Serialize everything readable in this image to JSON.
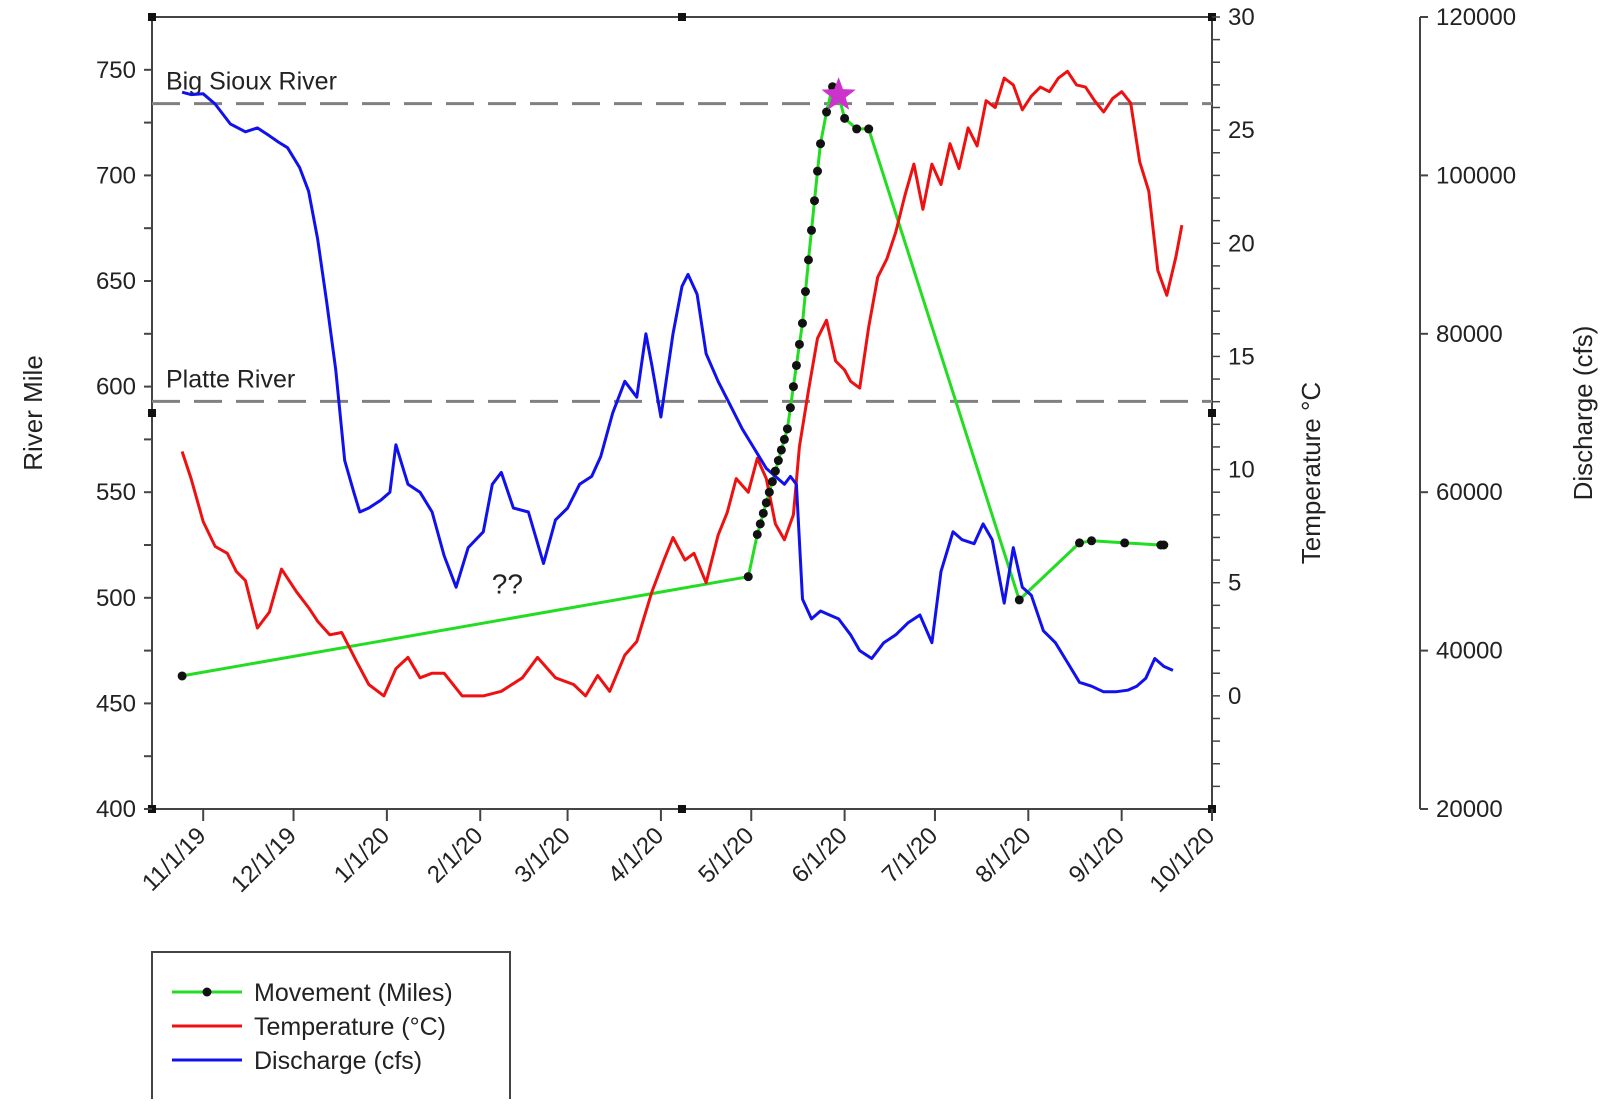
{
  "chart_data": {
    "type": "line",
    "title": "",
    "x_axis": {
      "type": "date",
      "ticks": [
        "11/1/19",
        "12/1/19",
        "1/1/20",
        "2/1/20",
        "3/1/20",
        "4/1/20",
        "5/1/20",
        "6/1/20",
        "7/1/20",
        "8/1/20",
        "9/1/20",
        "10/1/20"
      ],
      "range": [
        "2019-10-15",
        "2020-10-01"
      ]
    },
    "y_axes": [
      {
        "id": "river_mile",
        "label": "River Mile",
        "side": "left",
        "ylim": [
          400,
          775
        ],
        "ticks": [
          400,
          450,
          500,
          550,
          600,
          650,
          700,
          750
        ]
      },
      {
        "id": "temperature",
        "label": "Temperature °C",
        "side": "right",
        "ylim": [
          -5,
          30
        ],
        "ticks": [
          0,
          5,
          10,
          15,
          20,
          25,
          30
        ]
      },
      {
        "id": "discharge",
        "label": "Discharge (cfs)",
        "side": "right-outer",
        "ylim": [
          20000,
          120000
        ],
        "ticks": [
          20000,
          40000,
          60000,
          80000,
          100000,
          120000
        ]
      }
    ],
    "reference_lines": [
      {
        "label": "Big Sioux River",
        "y": 734,
        "style": "dashed",
        "color": "#808080"
      },
      {
        "label": "Platte River",
        "y": 593,
        "style": "dashed",
        "color": "#808080"
      }
    ],
    "annotations": [
      {
        "text": "??",
        "x": "2020-02-10",
        "y": 502
      },
      {
        "symbol": "star",
        "x": "2020-05-30",
        "y": 738,
        "color": "#cc33cc"
      }
    ],
    "series": [
      {
        "name": "Movement (Miles)",
        "axis": "river_mile",
        "color": "#22dd22",
        "markers": true,
        "points": [
          [
            "2019-10-25",
            463
          ],
          [
            "2020-04-30",
            510
          ],
          [
            "2020-05-03",
            530
          ],
          [
            "2020-05-04",
            535
          ],
          [
            "2020-05-05",
            540
          ],
          [
            "2020-05-06",
            545
          ],
          [
            "2020-05-07",
            550
          ],
          [
            "2020-05-08",
            555
          ],
          [
            "2020-05-09",
            560
          ],
          [
            "2020-05-10",
            565
          ],
          [
            "2020-05-11",
            570
          ],
          [
            "2020-05-12",
            575
          ],
          [
            "2020-05-13",
            580
          ],
          [
            "2020-05-14",
            590
          ],
          [
            "2020-05-15",
            600
          ],
          [
            "2020-05-16",
            610
          ],
          [
            "2020-05-17",
            620
          ],
          [
            "2020-05-18",
            630
          ],
          [
            "2020-05-19",
            645
          ],
          [
            "2020-05-20",
            660
          ],
          [
            "2020-05-21",
            674
          ],
          [
            "2020-05-22",
            688
          ],
          [
            "2020-05-23",
            702
          ],
          [
            "2020-05-24",
            715
          ],
          [
            "2020-05-26",
            730
          ],
          [
            "2020-05-28",
            742
          ],
          [
            "2020-05-30",
            738
          ],
          [
            "2020-06-01",
            727
          ],
          [
            "2020-06-05",
            722
          ],
          [
            "2020-06-09",
            722
          ],
          [
            "2020-07-29",
            499
          ],
          [
            "2020-08-18",
            526
          ],
          [
            "2020-08-22",
            527
          ],
          [
            "2020-09-02",
            526
          ],
          [
            "2020-09-14",
            525
          ],
          [
            "2020-09-15",
            525
          ]
        ]
      },
      {
        "name": "Temperature (°C)",
        "axis": "temperature",
        "color": "#ee1111",
        "markers": false,
        "points": [
          [
            "2019-10-25",
            10.8
          ],
          [
            "2019-10-28",
            9.6
          ],
          [
            "2019-11-01",
            7.7
          ],
          [
            "2019-11-05",
            6.6
          ],
          [
            "2019-11-09",
            6.3
          ],
          [
            "2019-11-12",
            5.5
          ],
          [
            "2019-11-15",
            5.1
          ],
          [
            "2019-11-19",
            3.0
          ],
          [
            "2019-11-23",
            3.7
          ],
          [
            "2019-11-27",
            5.6
          ],
          [
            "2019-12-02",
            4.6
          ],
          [
            "2019-12-06",
            3.9
          ],
          [
            "2019-12-09",
            3.3
          ],
          [
            "2019-12-13",
            2.7
          ],
          [
            "2019-12-17",
            2.8
          ],
          [
            "2019-12-22",
            1.5
          ],
          [
            "2019-12-26",
            0.5
          ],
          [
            "2019-12-31",
            0.0
          ],
          [
            "2020-01-04",
            1.2
          ],
          [
            "2020-01-08",
            1.7
          ],
          [
            "2020-01-12",
            0.8
          ],
          [
            "2020-01-16",
            1.0
          ],
          [
            "2020-01-20",
            1.0
          ],
          [
            "2020-01-26",
            0.0
          ],
          [
            "2020-02-02",
            0.0
          ],
          [
            "2020-02-08",
            0.2
          ],
          [
            "2020-02-15",
            0.8
          ],
          [
            "2020-02-20",
            1.7
          ],
          [
            "2020-02-26",
            0.8
          ],
          [
            "2020-03-03",
            0.5
          ],
          [
            "2020-03-07",
            0.0
          ],
          [
            "2020-03-11",
            0.9
          ],
          [
            "2020-03-15",
            0.2
          ],
          [
            "2020-03-20",
            1.8
          ],
          [
            "2020-03-24",
            2.4
          ],
          [
            "2020-03-29",
            4.6
          ],
          [
            "2020-04-02",
            6.0
          ],
          [
            "2020-04-05",
            7.0
          ],
          [
            "2020-04-09",
            6.0
          ],
          [
            "2020-04-12",
            6.3
          ],
          [
            "2020-04-16",
            5.0
          ],
          [
            "2020-04-20",
            7.1
          ],
          [
            "2020-04-23",
            8.1
          ],
          [
            "2020-04-26",
            9.6
          ],
          [
            "2020-04-30",
            9.0
          ],
          [
            "2020-05-03",
            10.5
          ],
          [
            "2020-05-06",
            9.6
          ],
          [
            "2020-05-09",
            7.6
          ],
          [
            "2020-05-12",
            6.9
          ],
          [
            "2020-05-15",
            8.0
          ],
          [
            "2020-05-17",
            11.0
          ],
          [
            "2020-05-20",
            13.5
          ],
          [
            "2020-05-23",
            15.8
          ],
          [
            "2020-05-26",
            16.6
          ],
          [
            "2020-05-29",
            14.8
          ],
          [
            "2020-06-01",
            14.4
          ],
          [
            "2020-06-03",
            13.9
          ],
          [
            "2020-06-06",
            13.6
          ],
          [
            "2020-06-09",
            16.3
          ],
          [
            "2020-06-12",
            18.5
          ],
          [
            "2020-06-15",
            19.3
          ],
          [
            "2020-06-18",
            20.5
          ],
          [
            "2020-06-21",
            22.1
          ],
          [
            "2020-06-24",
            23.5
          ],
          [
            "2020-06-27",
            21.5
          ],
          [
            "2020-06-30",
            23.5
          ],
          [
            "2020-07-03",
            22.6
          ],
          [
            "2020-07-06",
            24.4
          ],
          [
            "2020-07-09",
            23.3
          ],
          [
            "2020-07-12",
            25.1
          ],
          [
            "2020-07-15",
            24.3
          ],
          [
            "2020-07-18",
            26.3
          ],
          [
            "2020-07-21",
            26.0
          ],
          [
            "2020-07-24",
            27.3
          ],
          [
            "2020-07-27",
            27.0
          ],
          [
            "2020-07-30",
            25.9
          ],
          [
            "2020-08-02",
            26.5
          ],
          [
            "2020-08-05",
            26.9
          ],
          [
            "2020-08-08",
            26.7
          ],
          [
            "2020-08-11",
            27.3
          ],
          [
            "2020-08-14",
            27.6
          ],
          [
            "2020-08-17",
            27.0
          ],
          [
            "2020-08-20",
            26.9
          ],
          [
            "2020-08-23",
            26.3
          ],
          [
            "2020-08-26",
            25.8
          ],
          [
            "2020-08-29",
            26.4
          ],
          [
            "2020-09-01",
            26.7
          ],
          [
            "2020-09-04",
            26.2
          ],
          [
            "2020-09-07",
            23.6
          ],
          [
            "2020-09-10",
            22.3
          ],
          [
            "2020-09-13",
            18.8
          ],
          [
            "2020-09-16",
            17.7
          ],
          [
            "2020-09-19",
            19.4
          ],
          [
            "2020-09-21",
            20.8
          ]
        ]
      },
      {
        "name": "Discharge (cfs)",
        "axis": "discharge",
        "color": "#1111ee",
        "markers": false,
        "points": [
          [
            "2019-10-25",
            110500
          ],
          [
            "2019-10-28",
            110200
          ],
          [
            "2019-11-01",
            110300
          ],
          [
            "2019-11-05",
            109000
          ],
          [
            "2019-11-10",
            106500
          ],
          [
            "2019-11-15",
            105500
          ],
          [
            "2019-11-19",
            106000
          ],
          [
            "2019-11-23",
            105000
          ],
          [
            "2019-11-26",
            104200
          ],
          [
            "2019-11-29",
            103500
          ],
          [
            "2019-12-03",
            101000
          ],
          [
            "2019-12-06",
            98000
          ],
          [
            "2019-12-09",
            92000
          ],
          [
            "2019-12-12",
            84000
          ],
          [
            "2019-12-15",
            75500
          ],
          [
            "2019-12-18",
            64000
          ],
          [
            "2019-12-21",
            60000
          ],
          [
            "2019-12-23",
            57500
          ],
          [
            "2019-12-26",
            58000
          ],
          [
            "2019-12-30",
            59000
          ],
          [
            "2020-01-02",
            60000
          ],
          [
            "2020-01-04",
            66000
          ],
          [
            "2020-01-06",
            63500
          ],
          [
            "2020-01-08",
            61000
          ],
          [
            "2020-01-12",
            60000
          ],
          [
            "2020-01-16",
            57500
          ],
          [
            "2020-01-20",
            52000
          ],
          [
            "2020-01-24",
            48000
          ],
          [
            "2020-01-28",
            53000
          ],
          [
            "2020-02-02",
            55000
          ],
          [
            "2020-02-05",
            61000
          ],
          [
            "2020-02-08",
            62500
          ],
          [
            "2020-02-12",
            58000
          ],
          [
            "2020-02-17",
            57500
          ],
          [
            "2020-02-22",
            51000
          ],
          [
            "2020-02-26",
            56500
          ],
          [
            "2020-03-01",
            58000
          ],
          [
            "2020-03-05",
            61000
          ],
          [
            "2020-03-09",
            62000
          ],
          [
            "2020-03-12",
            64500
          ],
          [
            "2020-03-16",
            70000
          ],
          [
            "2020-03-20",
            74000
          ],
          [
            "2020-03-24",
            72000
          ],
          [
            "2020-03-27",
            80000
          ],
          [
            "2020-03-29",
            76000
          ],
          [
            "2020-04-01",
            69500
          ],
          [
            "2020-04-05",
            80000
          ],
          [
            "2020-04-08",
            86000
          ],
          [
            "2020-04-10",
            87500
          ],
          [
            "2020-04-13",
            85000
          ],
          [
            "2020-04-16",
            77500
          ],
          [
            "2020-04-20",
            74000
          ],
          [
            "2020-04-24",
            71000
          ],
          [
            "2020-04-28",
            68000
          ],
          [
            "2020-05-02",
            65500
          ],
          [
            "2020-05-06",
            63000
          ],
          [
            "2020-05-09",
            62000
          ],
          [
            "2020-05-12",
            61000
          ],
          [
            "2020-05-14",
            62000
          ],
          [
            "2020-05-16",
            61000
          ],
          [
            "2020-05-18",
            46500
          ],
          [
            "2020-05-21",
            44000
          ],
          [
            "2020-05-24",
            45000
          ],
          [
            "2020-05-27",
            44500
          ],
          [
            "2020-05-30",
            44000
          ],
          [
            "2020-06-03",
            42000
          ],
          [
            "2020-06-06",
            40000
          ],
          [
            "2020-06-10",
            39000
          ],
          [
            "2020-06-14",
            41000
          ],
          [
            "2020-06-18",
            42000
          ],
          [
            "2020-06-22",
            43500
          ],
          [
            "2020-06-26",
            44500
          ],
          [
            "2020-06-30",
            41000
          ],
          [
            "2020-07-03",
            50000
          ],
          [
            "2020-07-07",
            55000
          ],
          [
            "2020-07-10",
            54000
          ],
          [
            "2020-07-14",
            53500
          ],
          [
            "2020-07-17",
            56000
          ],
          [
            "2020-07-20",
            54000
          ],
          [
            "2020-07-24",
            46000
          ],
          [
            "2020-07-27",
            53000
          ],
          [
            "2020-07-30",
            48000
          ],
          [
            "2020-08-02",
            47000
          ],
          [
            "2020-08-06",
            42500
          ],
          [
            "2020-08-10",
            41000
          ],
          [
            "2020-08-14",
            38500
          ],
          [
            "2020-08-18",
            36000
          ],
          [
            "2020-08-22",
            35500
          ],
          [
            "2020-08-26",
            34800
          ],
          [
            "2020-08-30",
            34800
          ],
          [
            "2020-09-03",
            35000
          ],
          [
            "2020-09-06",
            35500
          ],
          [
            "2020-09-09",
            36500
          ],
          [
            "2020-09-12",
            39000
          ],
          [
            "2020-09-15",
            38000
          ],
          [
            "2020-09-18",
            37500
          ]
        ]
      }
    ],
    "legend": {
      "placement": "bottom-left",
      "entries": [
        "Movement (Miles)",
        "Temperature (°C)",
        "Discharge (cfs)"
      ]
    },
    "grid": false
  }
}
